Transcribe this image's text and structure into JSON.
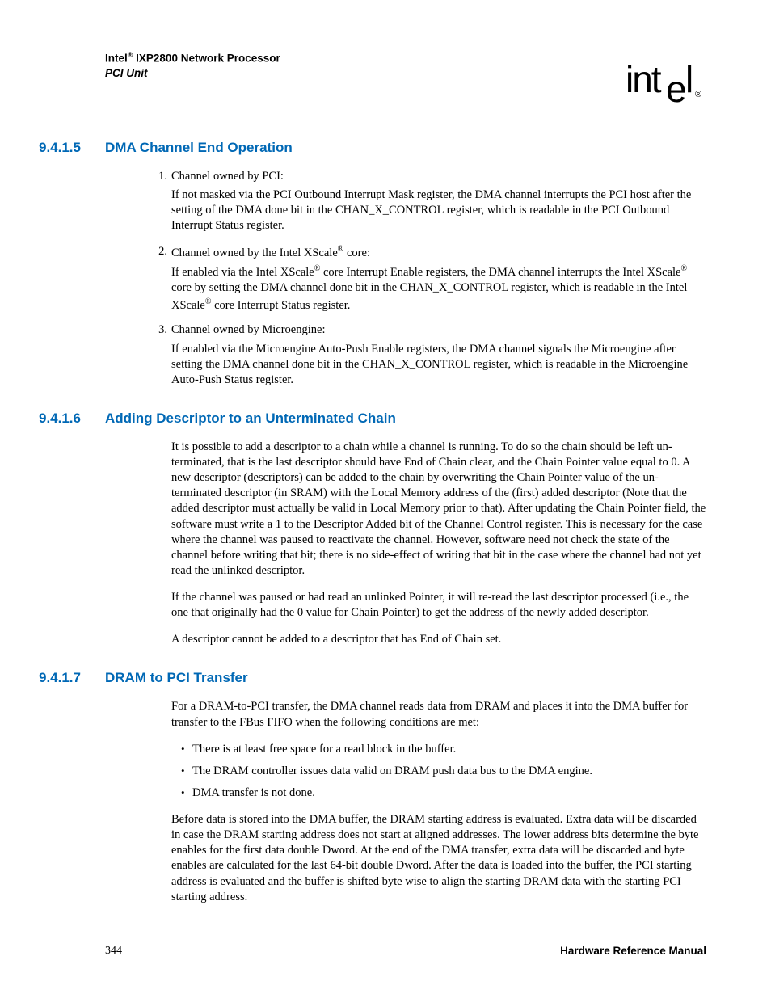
{
  "header": {
    "brand_prefix": "Intel",
    "reg": "®",
    "product": " IXP2800 Network Processor",
    "subtitle": "PCI Unit"
  },
  "logo": {
    "text_before_drop": "int",
    "drop_letter": "e",
    "text_after_drop": "l",
    "reg": "®"
  },
  "sections": [
    {
      "number": "9.4.1.5",
      "title": "DMA Channel End Operation",
      "ordered": [
        {
          "num": "1.",
          "lead": "Channel owned by PCI:",
          "body": "If not masked via the PCI Outbound Interrupt Mask register, the DMA channel interrupts the PCI host after the setting of the DMA done bit in the CHAN_X_CONTROL register, which is readable in the PCI Outbound Interrupt Status register."
        },
        {
          "num": "2.",
          "lead_parts": [
            "Channel owned by the Intel XScale",
            "®",
            " core:"
          ],
          "body_parts": [
            "If enabled via the Intel XScale",
            "®",
            " core Interrupt Enable registers, the DMA channel interrupts the Intel XScale",
            "®",
            " core by setting the DMA channel done bit in the CHAN_X_CONTROL register, which is readable in the Intel XScale",
            "®",
            " core Interrupt Status register."
          ]
        },
        {
          "num": "3.",
          "lead": "Channel owned by Microengine:",
          "body": "If enabled via the Microengine Auto-Push Enable registers, the DMA channel signals the Microengine after setting the DMA channel done bit in the CHAN_X_CONTROL register, which is readable in the Microengine Auto-Push Status register."
        }
      ]
    },
    {
      "number": "9.4.1.6",
      "title": "Adding Descriptor to an Unterminated Chain",
      "paragraphs": [
        "It is possible to add a descriptor to a chain while a channel is running. To do so the chain should be left un-terminated, that is the last descriptor should have End of Chain clear, and the Chain Pointer value equal to 0. A new descriptor (descriptors) can be added to the chain by overwriting the Chain Pointer value of the un-terminated descriptor (in SRAM) with the Local Memory address of the (first) added descriptor (Note that the added descriptor must actually be valid in Local Memory prior to that). After updating the Chain Pointer field, the software must write a 1 to the Descriptor Added bit of the Channel Control register. This is necessary for the case where the channel was paused to reactivate the channel. However, software need not check the state of the channel before writing that bit; there is no side-effect of writing that bit in the case where the channel had not yet read the unlinked descriptor.",
        "If the channel was paused or had read an unlinked Pointer, it will re-read the last descriptor processed (i.e., the one that originally had the 0 value for Chain Pointer) to get the address of the newly added descriptor.",
        "A descriptor cannot be added to a descriptor that has End of Chain set."
      ]
    },
    {
      "number": "9.4.1.7",
      "title": "DRAM to PCI Transfer",
      "intro": "For a DRAM-to-PCI transfer, the DMA channel reads data from DRAM and places it into the DMA buffer for transfer to the FBus FIFO when the following conditions are met:",
      "bullets": [
        "There is at least free space for a read block in the buffer.",
        "The DRAM controller issues data valid on DRAM push data bus to the DMA engine.",
        "DMA transfer is not done."
      ],
      "after": "Before data is stored into the DMA buffer, the DRAM starting address is evaluated. Extra data will be discarded in case the DRAM starting address does not start at aligned addresses. The lower address bits determine the byte enables for the first data double Dword. At the end of the DMA transfer, extra data will be discarded and byte enables are calculated for the last 64-bit double Dword. After the data is loaded into the buffer, the PCI starting address is evaluated and the buffer is shifted byte wise to align the starting DRAM data with the starting PCI starting address."
    }
  ],
  "footer": {
    "page": "344",
    "doc": "Hardware Reference Manual"
  },
  "colors": {
    "heading": "#0068b5",
    "text": "#000000",
    "background": "#ffffff"
  }
}
